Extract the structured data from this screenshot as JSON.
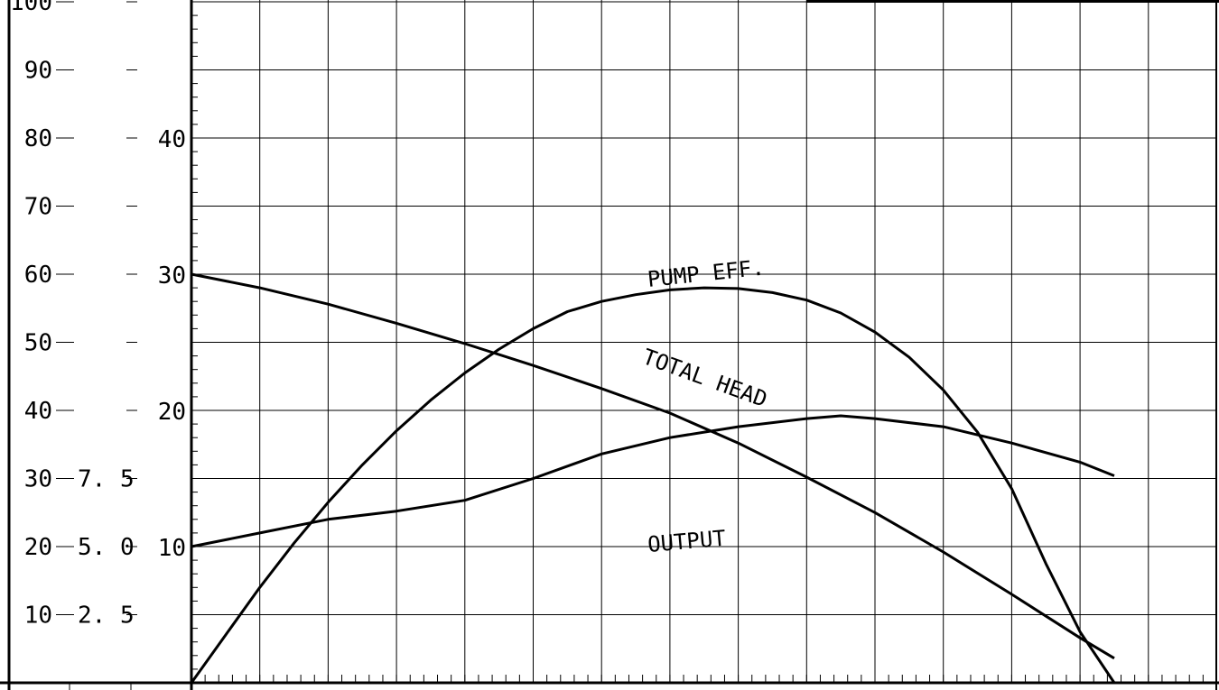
{
  "chart_data": {
    "type": "line",
    "title": "",
    "xlabel": "",
    "ylabel": "",
    "grid": true,
    "x_gridlines": 15,
    "axes": {
      "percent": {
        "ticks": [
          "100",
          "90",
          "80",
          "70",
          "60",
          "50",
          "40",
          "30",
          "20",
          "10"
        ],
        "range": [
          0,
          100
        ]
      },
      "kw": {
        "ticks": [
          "7. 5",
          "5. 0",
          "2. 5"
        ],
        "range": [
          0,
          25
        ]
      },
      "head": {
        "ticks": [
          "40",
          "30",
          "20",
          "10"
        ],
        "range": [
          0,
          50
        ]
      }
    },
    "series": [
      {
        "name": "PUMP EFF.",
        "axis": "percent",
        "x": [
          0,
          0.5,
          1,
          1.5,
          2,
          2.5,
          3,
          3.5,
          4,
          4.5,
          5,
          5.5,
          6,
          6.5,
          7,
          7.5,
          8,
          8.5,
          9,
          9.5,
          10,
          10.5,
          11,
          11.5,
          12,
          12.5,
          13,
          13.5
        ],
        "values": [
          0,
          7,
          14,
          20.5,
          26.5,
          32,
          37,
          41.5,
          45.5,
          49,
          52,
          54.5,
          56,
          57,
          57.7,
          58,
          57.9,
          57.3,
          56.2,
          54.3,
          51.5,
          47.8,
          43,
          36.8,
          28.5,
          17.5,
          7.5,
          0
        ]
      },
      {
        "name": "TOTAL HEAD",
        "axis": "head",
        "x": [
          0,
          1,
          2,
          3,
          4,
          5,
          6,
          7,
          8,
          9,
          10,
          11,
          12,
          13,
          13.5
        ],
        "values": [
          30,
          29,
          27.8,
          26.4,
          24.9,
          23.3,
          21.6,
          19.8,
          17.6,
          15.1,
          12.5,
          9.6,
          6.5,
          3.3,
          1.8
        ]
      },
      {
        "name": "OUTPUT",
        "axis": "kw",
        "x": [
          0,
          1,
          2,
          3,
          4,
          5,
          6,
          7,
          8,
          9,
          9.5,
          10,
          11,
          12,
          13,
          13.5
        ],
        "values": [
          5,
          5.5,
          6,
          6.3,
          6.7,
          7.5,
          8.4,
          9,
          9.4,
          9.7,
          9.8,
          9.7,
          9.4,
          8.8,
          8.1,
          7.6
        ]
      }
    ]
  }
}
